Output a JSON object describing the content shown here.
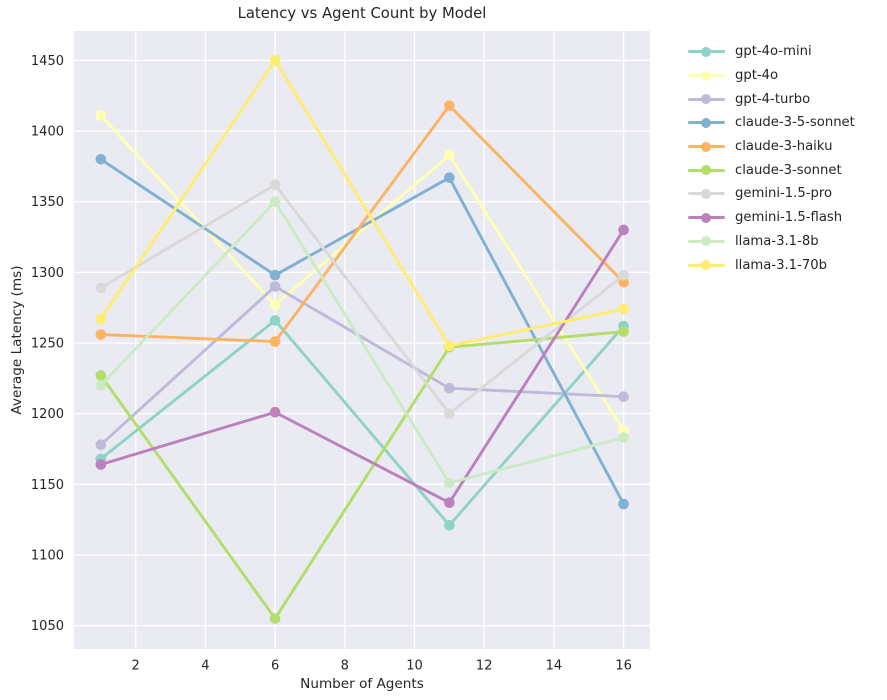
{
  "chart_data": {
    "type": "line",
    "title": "Latency vs Agent Count by Model",
    "xlabel": "Number of Agents",
    "ylabel": "Average Latency (ms)",
    "x": [
      1,
      6,
      11,
      16
    ],
    "x_ticks": [
      2,
      4,
      6,
      8,
      10,
      12,
      14,
      16
    ],
    "y_ticks": [
      1050,
      1100,
      1150,
      1200,
      1250,
      1300,
      1350,
      1400,
      1450
    ],
    "xlim": [
      0.25,
      16.75
    ],
    "ylim": [
      1033,
      1471
    ],
    "grid": true,
    "legend_position": "right-outside",
    "plot_bg": "#eaeaf2",
    "grid_color": "#ffffff",
    "text_color": "#262626",
    "series": [
      {
        "name": "gpt-4o-mini",
        "color": "#8dd3c7",
        "values": [
          1168,
          1266,
          1121,
          1262
        ]
      },
      {
        "name": "gpt-4o",
        "color": "#ffffb3",
        "values": [
          1411,
          1277,
          1383,
          1188
        ]
      },
      {
        "name": "gpt-4-turbo",
        "color": "#bebada",
        "values": [
          1178,
          1290,
          1218,
          1212
        ]
      },
      {
        "name": "claude-3-5-sonnet",
        "color": "#80b1d3",
        "values": [
          1380,
          1298,
          1367,
          1136
        ]
      },
      {
        "name": "claude-3-haiku",
        "color": "#fdb462",
        "values": [
          1256,
          1251,
          1418,
          1293
        ]
      },
      {
        "name": "claude-3-sonnet",
        "color": "#b3de69",
        "values": [
          1227,
          1055,
          1247,
          1258
        ]
      },
      {
        "name": "gemini-1.5-pro",
        "color": "#d9d9d9",
        "values": [
          1289,
          1362,
          1200,
          1298
        ]
      },
      {
        "name": "gemini-1.5-flash",
        "color": "#bc80bd",
        "values": [
          1164,
          1201,
          1137,
          1330
        ]
      },
      {
        "name": "llama-3.1-8b",
        "color": "#ccebc5",
        "values": [
          1220,
          1350,
          1151,
          1183
        ]
      },
      {
        "name": "llama-3.1-70b",
        "color": "#ffed6f",
        "values": [
          1267,
          1450,
          1248,
          1274
        ]
      }
    ]
  }
}
